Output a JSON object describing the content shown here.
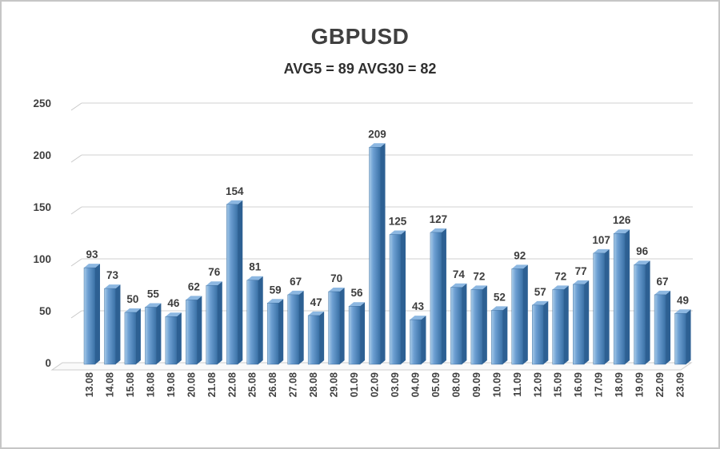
{
  "header": {
    "title": "GBPUSD",
    "subtitle": "AVG5 = 89 AVG30 = 82"
  },
  "chart_data": {
    "type": "bar",
    "style": "3d-column",
    "title": "GBPUSD",
    "subtitle": "AVG5 = 89 AVG30 = 82",
    "categories": [
      "13.08",
      "14.08",
      "15.08",
      "18.08",
      "19.08",
      "20.08",
      "21.08",
      "22.08",
      "25.08",
      "26.08",
      "27.08",
      "28.08",
      "29.08",
      "01.09",
      "02.09",
      "03.09",
      "04.09",
      "05.09",
      "08.09",
      "09.09",
      "10.09",
      "11.09",
      "12.09",
      "15.09",
      "16.09",
      "17.09",
      "18.09",
      "19.09",
      "22.09",
      "23.09"
    ],
    "values": [
      93,
      73,
      50,
      55,
      46,
      62,
      76,
      154,
      81,
      59,
      67,
      47,
      70,
      56,
      209,
      125,
      43,
      127,
      74,
      72,
      52,
      92,
      57,
      72,
      77,
      107,
      126,
      96,
      67,
      49
    ],
    "data_labels": true,
    "xlabel": "",
    "ylabel": "",
    "ylim": [
      0,
      250
    ],
    "yticks": [
      0,
      50,
      100,
      150,
      200,
      250
    ],
    "grid": true,
    "legend": false,
    "colors": {
      "bar_face_light": "#a9cce9",
      "bar_face_mid": "#6d9fd2",
      "bar_face_dark": "#3a71a6",
      "bar_side": "#2d6093",
      "bar_top": "#8cb7e1",
      "gridline": "#d9d9d9",
      "grid_accent": "#c9c9c9",
      "floor_fill": "#fafafa",
      "floor_stroke": "#cccccc",
      "label_text": "#3d3d3d",
      "axis_text": "#3f3f3f"
    }
  }
}
